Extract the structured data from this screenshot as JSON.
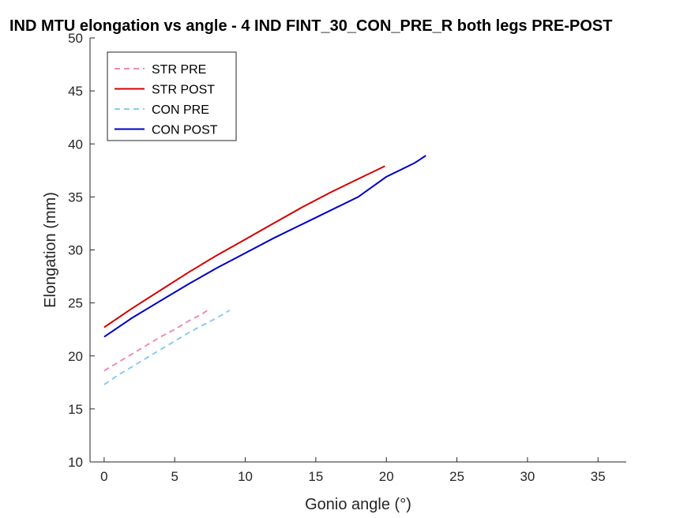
{
  "chart_data": {
    "type": "line",
    "title": "IND MTU elongation vs angle - 4 IND FINT_30_CON_PRE_R both legs PRE-POST",
    "xlabel": "Gonio angle (°)",
    "ylabel": "Elongation (mm)",
    "xlim": [
      -1,
      37
    ],
    "ylim": [
      10,
      50
    ],
    "xticks": [
      0,
      5,
      10,
      15,
      20,
      25,
      30,
      35
    ],
    "yticks": [
      10,
      15,
      20,
      25,
      30,
      35,
      40,
      45,
      50
    ],
    "legend_position": "top-left",
    "grid": false,
    "series": [
      {
        "name": "STR PRE",
        "color": "#f08cb4",
        "dash": true,
        "x": [
          0,
          1,
          2,
          3,
          4,
          5,
          6,
          7,
          7.4
        ],
        "y": [
          18.6,
          19.4,
          20.2,
          21.0,
          21.8,
          22.5,
          23.3,
          24.0,
          24.4
        ]
      },
      {
        "name": "STR POST",
        "color": "#d40000",
        "dash": false,
        "x": [
          0,
          2,
          4,
          6,
          8,
          10,
          12,
          14,
          16,
          18,
          19.9
        ],
        "y": [
          22.7,
          24.5,
          26.2,
          27.9,
          29.5,
          31.0,
          32.5,
          34.0,
          35.4,
          36.7,
          37.9
        ]
      },
      {
        "name": "CON PRE",
        "color": "#8ccbef",
        "dash": true,
        "x": [
          0,
          1,
          2,
          3,
          4,
          5,
          6,
          7,
          8,
          8.9
        ],
        "y": [
          17.3,
          18.2,
          19.0,
          19.8,
          20.6,
          21.4,
          22.2,
          22.9,
          23.6,
          24.3
        ]
      },
      {
        "name": "CON POST",
        "color": "#0000c8",
        "dash": false,
        "x": [
          0,
          2,
          4,
          6,
          8,
          10,
          12,
          14,
          16,
          18,
          20,
          22,
          22.8
        ],
        "y": [
          21.8,
          23.6,
          25.2,
          26.8,
          28.3,
          29.7,
          31.1,
          32.4,
          33.7,
          35.0,
          36.9,
          38.2,
          38.9
        ]
      }
    ]
  }
}
